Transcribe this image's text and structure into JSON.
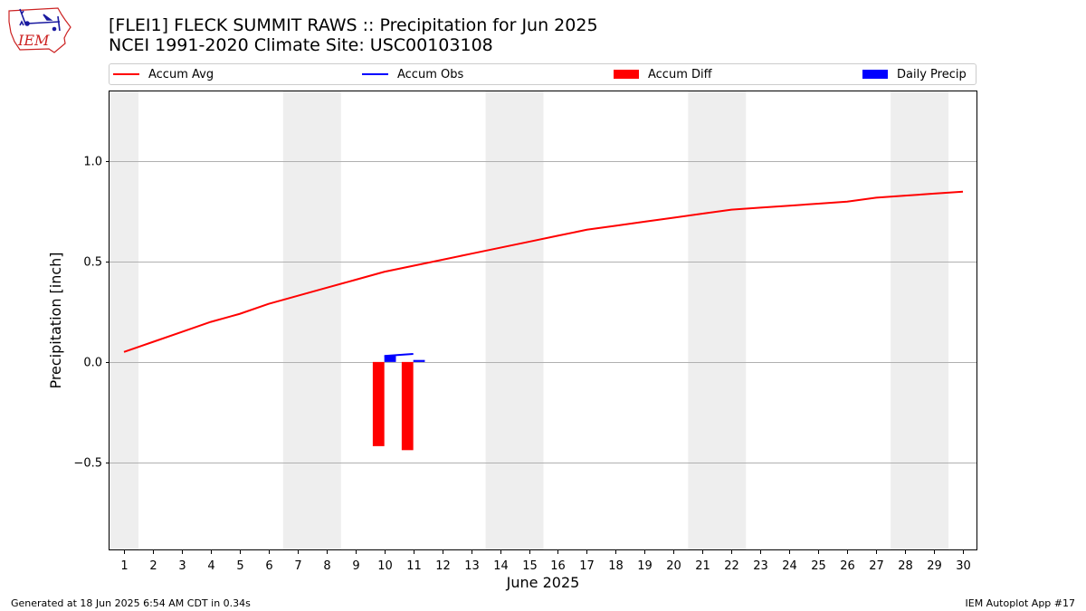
{
  "header": {
    "logo_text": "IEM",
    "title_line1": "[FLEI1] FLECK SUMMIT RAWS :: Precipitation for Jun 2025",
    "title_line2": "NCEI 1991-2020 Climate Site: USC00103108"
  },
  "legend": {
    "items": [
      {
        "label": "Accum Avg",
        "kind": "line",
        "color": "#ff0000"
      },
      {
        "label": "Accum Obs",
        "kind": "line",
        "color": "#0000ff"
      },
      {
        "label": "Accum Diff",
        "kind": "bar",
        "color": "#ff0000"
      },
      {
        "label": "Daily Precip",
        "kind": "bar",
        "color": "#0000ff"
      }
    ]
  },
  "footer": {
    "left": "Generated at 18 Jun 2025 6:54 AM CDT in 0.34s",
    "right": "IEM Autoplot App #17"
  },
  "chart_data": {
    "type": "line",
    "xlabel": "June 2025",
    "ylabel": "Precipitation [inch]",
    "x": [
      1,
      2,
      3,
      4,
      5,
      6,
      7,
      8,
      9,
      10,
      11,
      12,
      13,
      14,
      15,
      16,
      17,
      18,
      19,
      20,
      21,
      22,
      23,
      24,
      25,
      26,
      27,
      28,
      29,
      30
    ],
    "xticklabels": [
      "1",
      "2",
      "3",
      "4",
      "5",
      "6",
      "7",
      "8",
      "9",
      "10",
      "11",
      "12",
      "13",
      "14",
      "15",
      "16",
      "17",
      "18",
      "19",
      "20",
      "21",
      "22",
      "23",
      "24",
      "25",
      "26",
      "27",
      "28",
      "29",
      "30"
    ],
    "xlim": [
      0.5,
      30.5
    ],
    "ylim": [
      -0.94,
      1.35
    ],
    "yticks": [
      -0.5,
      0.0,
      0.5,
      1.0
    ],
    "yticklabels": [
      "−0.5",
      "0.0",
      "0.5",
      "1.0"
    ],
    "grid": "horizontal",
    "weekend_shading": [
      [
        0.5,
        1.5
      ],
      [
        6.5,
        8.5
      ],
      [
        13.5,
        15.5
      ],
      [
        20.5,
        22.5
      ],
      [
        27.5,
        29.5
      ]
    ],
    "legend_position": "top",
    "series": [
      {
        "name": "Accum Avg",
        "type": "line",
        "color": "#ff0000",
        "x": [
          1,
          2,
          3,
          4,
          5,
          6,
          7,
          8,
          9,
          10,
          11,
          12,
          13,
          14,
          15,
          16,
          17,
          18,
          19,
          20,
          21,
          22,
          23,
          24,
          25,
          26,
          27,
          28,
          29,
          30
        ],
        "values": [
          0.05,
          0.1,
          0.15,
          0.2,
          0.24,
          0.29,
          0.33,
          0.37,
          0.41,
          0.45,
          0.48,
          0.51,
          0.54,
          0.57,
          0.6,
          0.63,
          0.66,
          0.68,
          0.7,
          0.72,
          0.74,
          0.76,
          0.77,
          0.78,
          0.79,
          0.8,
          0.82,
          0.83,
          0.84,
          0.85
        ]
      },
      {
        "name": "Accum Obs",
        "type": "line",
        "color": "#0000ff",
        "x": [
          10,
          11
        ],
        "values": [
          0.03,
          0.04
        ]
      },
      {
        "name": "Accum Diff",
        "type": "bar",
        "color": "#ff0000",
        "x": [
          10,
          11
        ],
        "values": [
          -0.42,
          -0.44
        ]
      },
      {
        "name": "Daily Precip",
        "type": "bar",
        "color": "#0000ff",
        "x": [
          10,
          11
        ],
        "values": [
          0.03,
          0.01
        ]
      }
    ]
  }
}
